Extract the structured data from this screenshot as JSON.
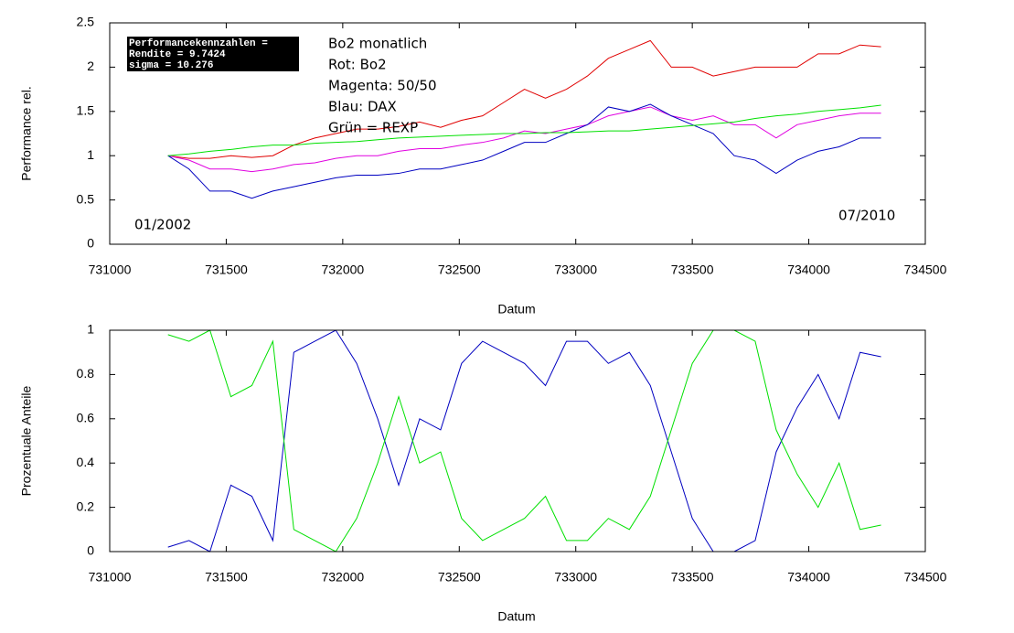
{
  "chart_data": [
    {
      "type": "line",
      "ylabel": "Performance rel.",
      "xlabel": "Datum",
      "text_box": [
        "Performancekennzahlen =",
        "Rendite =  9.7424",
        "sigma =  10.276"
      ],
      "notes": [
        "Bo2 monatlich",
        "Rot: Bo2",
        "Magenta: 50/50",
        "Blau: DAX",
        "Grün = REXP"
      ],
      "corner_labels": [
        "01/2002",
        "07/2010"
      ],
      "xlim": [
        731000,
        734500
      ],
      "xticks": [
        731000,
        731500,
        732000,
        732500,
        733000,
        733500,
        734000,
        734500
      ],
      "ylim": [
        0,
        2.5
      ],
      "yticks": [
        0,
        0.5,
        1,
        1.5,
        2,
        2.5
      ],
      "grid": false,
      "x": [
        731250,
        731340,
        731430,
        731520,
        731610,
        731700,
        731790,
        731880,
        731970,
        732060,
        732150,
        732240,
        732330,
        732420,
        732510,
        732600,
        732690,
        732780,
        732870,
        732960,
        733050,
        733140,
        733230,
        733320,
        733410,
        733500,
        733590,
        733680,
        733770,
        733860,
        733950,
        734040,
        734130,
        734220,
        734310
      ],
      "series": [
        {
          "color": "#e00000",
          "values": [
            1.0,
            0.97,
            0.97,
            1.0,
            0.98,
            1.0,
            1.12,
            1.2,
            1.25,
            1.3,
            1.3,
            1.33,
            1.38,
            1.32,
            1.4,
            1.45,
            1.6,
            1.75,
            1.65,
            1.75,
            1.9,
            2.1,
            2.2,
            2.3,
            2.0,
            2.0,
            1.9,
            1.95,
            2.0,
            2.0,
            2.0,
            2.15,
            2.15,
            2.25,
            2.23
          ]
        },
        {
          "color": "#e000e0",
          "values": [
            1.0,
            0.95,
            0.85,
            0.85,
            0.82,
            0.85,
            0.9,
            0.92,
            0.97,
            1.0,
            1.0,
            1.05,
            1.08,
            1.08,
            1.12,
            1.15,
            1.2,
            1.28,
            1.25,
            1.3,
            1.35,
            1.45,
            1.5,
            1.55,
            1.45,
            1.4,
            1.45,
            1.35,
            1.35,
            1.2,
            1.35,
            1.4,
            1.45,
            1.48,
            1.48
          ]
        },
        {
          "color": "#0000c0",
          "values": [
            1.0,
            0.85,
            0.6,
            0.6,
            0.52,
            0.6,
            0.65,
            0.7,
            0.75,
            0.78,
            0.78,
            0.8,
            0.85,
            0.85,
            0.9,
            0.95,
            1.05,
            1.15,
            1.15,
            1.25,
            1.35,
            1.55,
            1.5,
            1.58,
            1.45,
            1.35,
            1.25,
            1.0,
            0.95,
            0.8,
            0.95,
            1.05,
            1.1,
            1.2,
            1.2
          ]
        },
        {
          "color": "#00e000",
          "values": [
            1.0,
            1.02,
            1.05,
            1.07,
            1.1,
            1.12,
            1.12,
            1.14,
            1.15,
            1.16,
            1.18,
            1.2,
            1.21,
            1.22,
            1.23,
            1.24,
            1.25,
            1.25,
            1.26,
            1.26,
            1.27,
            1.28,
            1.28,
            1.3,
            1.32,
            1.34,
            1.36,
            1.38,
            1.42,
            1.45,
            1.47,
            1.5,
            1.52,
            1.54,
            1.57
          ]
        }
      ]
    },
    {
      "type": "line",
      "ylabel": "Prozentuale Anteile",
      "xlabel": "Datum",
      "xlim": [
        731000,
        734500
      ],
      "xticks": [
        731000,
        731500,
        732000,
        732500,
        733000,
        733500,
        734000,
        734500
      ],
      "ylim": [
        0,
        1
      ],
      "yticks": [
        0,
        0.2,
        0.4,
        0.6,
        0.8,
        1
      ],
      "grid": false,
      "x": [
        731250,
        731340,
        731430,
        731520,
        731610,
        731700,
        731790,
        731880,
        731970,
        732060,
        732150,
        732240,
        732330,
        732420,
        732510,
        732600,
        732690,
        732780,
        732870,
        732960,
        733050,
        733140,
        733230,
        733320,
        733410,
        733500,
        733590,
        733680,
        733770,
        733860,
        733950,
        734040,
        734130,
        734220,
        734310
      ],
      "series": [
        {
          "color": "#0000c0",
          "values": [
            0.02,
            0.05,
            0.0,
            0.3,
            0.25,
            0.05,
            0.9,
            0.95,
            1.0,
            0.85,
            0.6,
            0.3,
            0.6,
            0.55,
            0.85,
            0.95,
            0.9,
            0.85,
            0.75,
            0.95,
            0.95,
            0.85,
            0.9,
            0.75,
            0.45,
            0.15,
            0.0,
            0.0,
            0.05,
            0.45,
            0.65,
            0.8,
            0.6,
            0.9,
            0.88
          ]
        },
        {
          "color": "#00e000",
          "values": [
            0.98,
            0.95,
            1.0,
            0.7,
            0.75,
            0.95,
            0.1,
            0.05,
            0.0,
            0.15,
            0.4,
            0.7,
            0.4,
            0.45,
            0.15,
            0.05,
            0.1,
            0.15,
            0.25,
            0.05,
            0.05,
            0.15,
            0.1,
            0.25,
            0.55,
            0.85,
            1.0,
            1.0,
            0.95,
            0.55,
            0.35,
            0.2,
            0.4,
            0.1,
            0.12
          ]
        }
      ]
    }
  ]
}
